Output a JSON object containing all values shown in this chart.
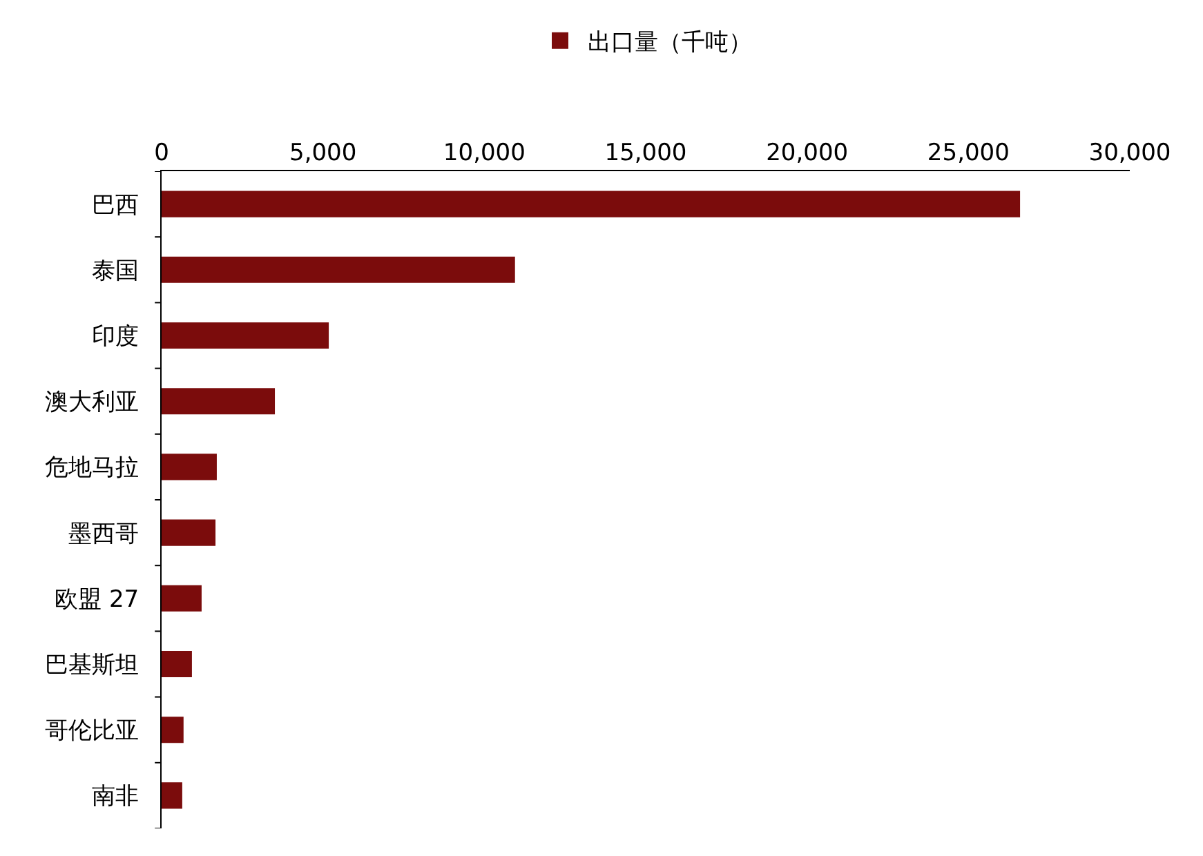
{
  "chart_data": {
    "type": "bar",
    "orientation": "horizontal",
    "categories": [
      "巴西",
      "泰国",
      "印度",
      "澳大利亚",
      "危地马拉",
      "墨西哥",
      "欧盟 27",
      "巴基斯坦",
      "哥伦比亚",
      "南非"
    ],
    "series": [
      {
        "name": "出口量（千吨）",
        "color": "#7b0c0c",
        "values": [
          26600,
          10950,
          5180,
          3510,
          1710,
          1670,
          1240,
          940,
          680,
          640
        ]
      }
    ],
    "xlim": [
      0,
      30000
    ],
    "xticks": [
      {
        "value": 0,
        "label": "0"
      },
      {
        "value": 5000,
        "label": "5,000"
      },
      {
        "value": 10000,
        "label": "10,000"
      },
      {
        "value": 15000,
        "label": "15,000"
      },
      {
        "value": 20000,
        "label": "20,000"
      },
      {
        "value": 25000,
        "label": "25,000"
      },
      {
        "value": 30000,
        "label": "30,000"
      }
    ],
    "grid": false,
    "legend": "top"
  }
}
